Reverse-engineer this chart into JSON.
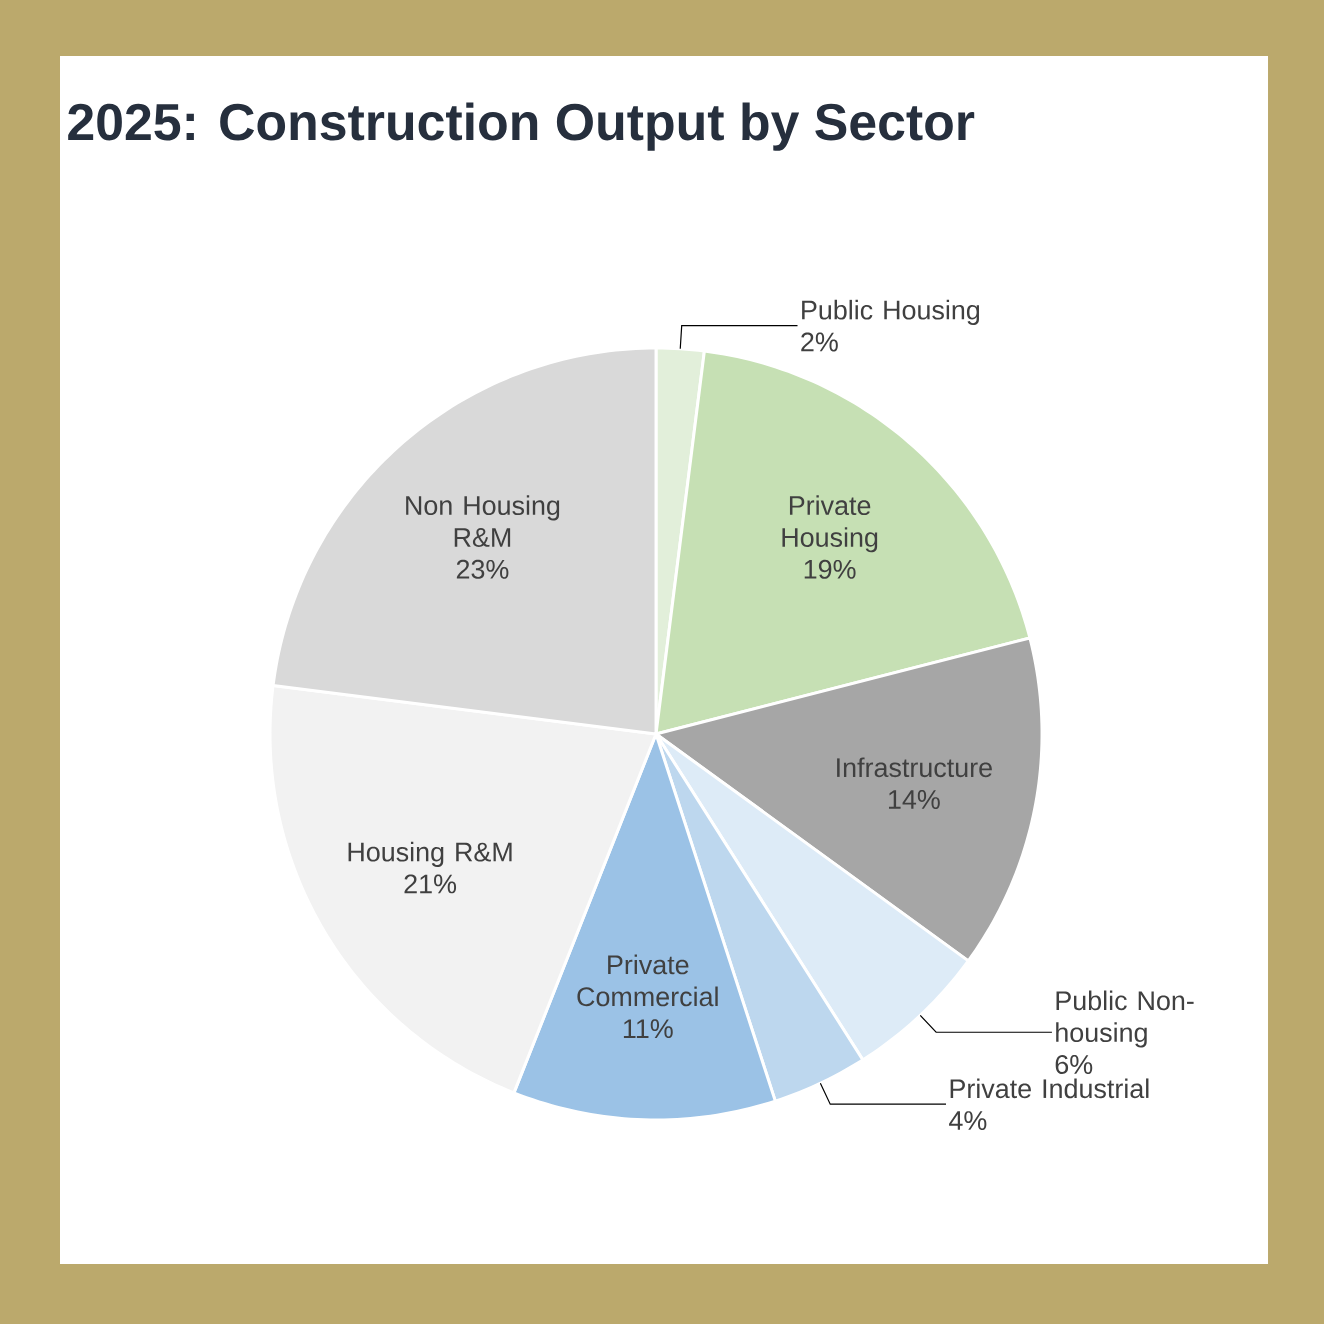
{
  "chart_data": {
    "type": "pie",
    "title": "2025: Construction Output by Sector",
    "categories": [
      "Public Housing",
      "Private Housing",
      "Infrastructure",
      "Public Non-housing",
      "Private Industrial",
      "Private Commercial",
      "Housing R&M",
      "Non Housing R&M"
    ],
    "values": [
      2,
      19,
      14,
      6,
      4,
      11,
      21,
      23
    ],
    "value_labels": [
      "2%",
      "19%",
      "14%",
      "6%",
      "4%",
      "11%",
      "21%",
      "23%"
    ],
    "colors": [
      "#e2efda",
      "#c6e0b4",
      "#a6a6a6",
      "#ddebf7",
      "#bdd7ee",
      "#9bc2e6",
      "#f2f2f2",
      "#d9d9d9"
    ]
  }
}
